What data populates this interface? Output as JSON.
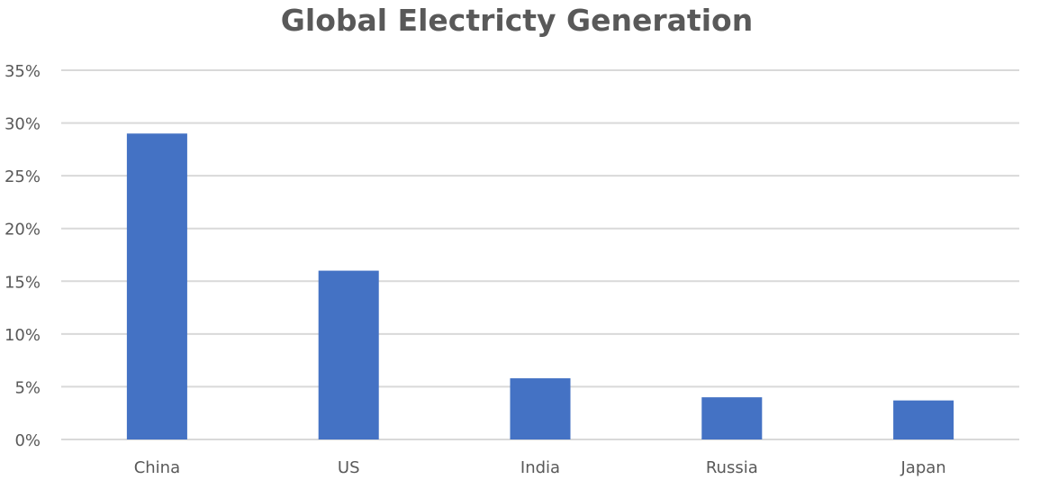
{
  "chart_data": {
    "type": "bar",
    "title": "Global Electricty Generation",
    "xlabel": "",
    "ylabel": "",
    "categories": [
      "China",
      "US",
      "India",
      "Russia",
      "Japan"
    ],
    "values": [
      29,
      16,
      5.8,
      4.0,
      3.7
    ],
    "value_format": "percent",
    "ylim": [
      0,
      35
    ],
    "yticks": [
      0,
      5,
      10,
      15,
      20,
      25,
      30,
      35
    ],
    "ytick_labels": [
      "0%",
      "5%",
      "10%",
      "15%",
      "20%",
      "25%",
      "30%",
      "35%"
    ],
    "grid": true,
    "legend": "none",
    "colors": {
      "bar": "#4472c4",
      "grid": "#d9d9d9",
      "text": "#595959"
    }
  }
}
